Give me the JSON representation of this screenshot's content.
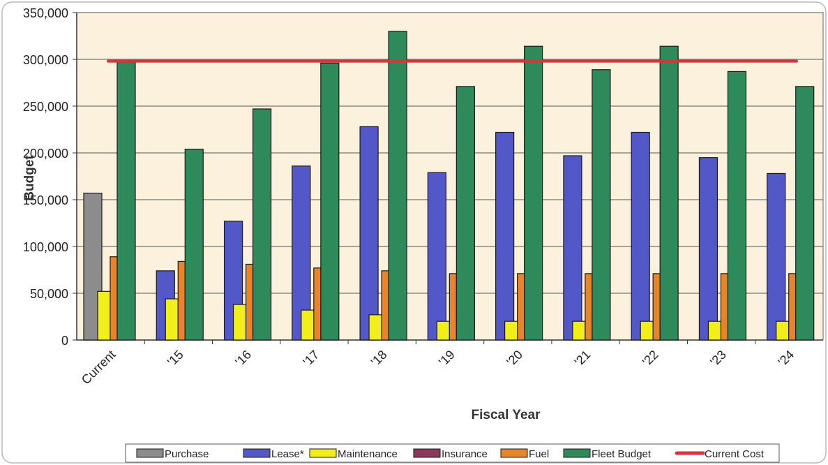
{
  "chart_data": {
    "type": "bar",
    "title": "",
    "xlabel": "Fiscal Year",
    "ylabel": "Budget",
    "ylim": [
      0,
      350000
    ],
    "yticks": [
      0,
      50000,
      100000,
      150000,
      200000,
      250000,
      300000,
      350000
    ],
    "ytick_labels": [
      "0",
      "50,000",
      "100,000",
      "150,000",
      "200,000",
      "250,000",
      "300,000",
      "350,000"
    ],
    "grid": "horizontal",
    "legend_position": "bottom",
    "categories": [
      "Current",
      "'15",
      "'16",
      "'17",
      "'18",
      "'19",
      "'20",
      "'21",
      "'22",
      "'23",
      "'24"
    ],
    "series": [
      {
        "name": "Purchase",
        "color": "#8c8c8c",
        "values": [
          157000,
          0,
          0,
          0,
          0,
          0,
          0,
          0,
          0,
          0,
          0
        ]
      },
      {
        "name": "Lease*",
        "color": "#5258c8",
        "values": [
          0,
          74000,
          127000,
          186000,
          228000,
          179000,
          222000,
          197000,
          222000,
          195000,
          178000
        ]
      },
      {
        "name": "Maintenance",
        "color": "#f2ee1a",
        "values": [
          52000,
          44000,
          38000,
          32000,
          27000,
          20000,
          20000,
          20000,
          20000,
          20000,
          20000
        ]
      },
      {
        "name": "Insurance",
        "color": "#8b3a5e",
        "values": [
          0,
          0,
          0,
          0,
          0,
          0,
          0,
          0,
          0,
          0,
          0
        ]
      },
      {
        "name": "Fuel",
        "color": "#e8852a",
        "values": [
          89000,
          84000,
          81000,
          77000,
          74000,
          71000,
          71000,
          71000,
          71000,
          71000,
          71000
        ]
      },
      {
        "name": "Fleet Budget",
        "color": "#2e8a5a",
        "values": [
          297000,
          204000,
          247000,
          296000,
          330000,
          271000,
          314000,
          289000,
          314000,
          287000,
          271000
        ]
      }
    ],
    "reference_line": {
      "name": "Current Cost",
      "color": "#e0303a",
      "value": 298000
    }
  }
}
